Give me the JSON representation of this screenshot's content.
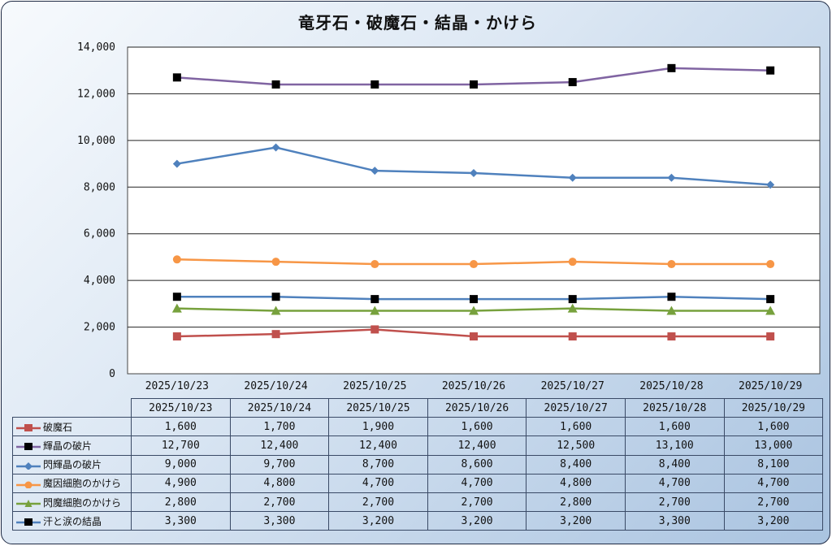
{
  "chart_data": {
    "type": "line",
    "title": "竜牙石・破魔石・結晶・かけら",
    "categories": [
      "2025/10/23",
      "2025/10/24",
      "2025/10/25",
      "2025/10/26",
      "2025/10/27",
      "2025/10/28",
      "2025/10/29"
    ],
    "ylim": [
      0,
      14000
    ],
    "yticks": [
      "0",
      "2,000",
      "4,000",
      "6,000",
      "8,000",
      "10,000",
      "12,000",
      "14,000"
    ],
    "grid": true,
    "legend_placement": "bottom-table",
    "series": [
      {
        "name": "破魔石",
        "values": [
          1600,
          1700,
          1900,
          1600,
          1600,
          1600,
          1600
        ],
        "labels": [
          "1,600",
          "1,700",
          "1,900",
          "1,600",
          "1,600",
          "1,600",
          "1,600"
        ],
        "color": "#c0504d",
        "marker": "square"
      },
      {
        "name": "輝晶の破片",
        "values": [
          12700,
          12400,
          12400,
          12400,
          12500,
          13100,
          13000
        ],
        "labels": [
          "12,700",
          "12,400",
          "12,400",
          "12,400",
          "12,500",
          "13,100",
          "13,000"
        ],
        "color": "#8064a2",
        "marker": "square-black"
      },
      {
        "name": "閃輝晶の破片",
        "values": [
          9000,
          9700,
          8700,
          8600,
          8400,
          8400,
          8100
        ],
        "labels": [
          "9,000",
          "9,700",
          "8,700",
          "8,600",
          "8,400",
          "8,400",
          "8,100"
        ],
        "color": "#4f81bd",
        "marker": "diamond"
      },
      {
        "name": "魔因細胞のかけら",
        "values": [
          4900,
          4800,
          4700,
          4700,
          4800,
          4700,
          4700
        ],
        "labels": [
          "4,900",
          "4,800",
          "4,700",
          "4,700",
          "4,800",
          "4,700",
          "4,700"
        ],
        "color": "#f79646",
        "marker": "circle"
      },
      {
        "name": "閃魔細胞のかけら",
        "values": [
          2800,
          2700,
          2700,
          2700,
          2800,
          2700,
          2700
        ],
        "labels": [
          "2,800",
          "2,700",
          "2,700",
          "2,700",
          "2,800",
          "2,700",
          "2,700"
        ],
        "color": "#77a13d",
        "marker": "triangle"
      },
      {
        "name": "汗と涙の結晶",
        "values": [
          3300,
          3300,
          3200,
          3200,
          3200,
          3300,
          3200
        ],
        "labels": [
          "3,300",
          "3,300",
          "3,200",
          "3,200",
          "3,200",
          "3,300",
          "3,200"
        ],
        "color": "#4f81bd",
        "marker": "square-black"
      }
    ]
  }
}
